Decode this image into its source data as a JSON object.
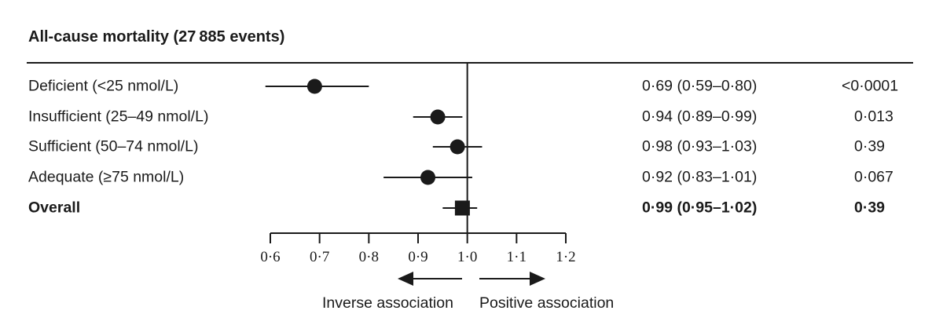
{
  "chart_data": {
    "type": "forest",
    "title": "All-cause mortality (27 885 events)",
    "xlim": [
      0.6,
      1.2
    ],
    "reference_line": 1.0,
    "ticks": [
      0.6,
      0.7,
      0.8,
      0.9,
      1.0,
      1.1,
      1.2
    ],
    "tick_labels": [
      "0·6",
      "0·7",
      "0·8",
      "0·9",
      "1·0",
      "1·1",
      "1·2"
    ],
    "rows": [
      {
        "label": "Deficient (<25 nmol/L)",
        "estimate": 0.69,
        "lower": 0.59,
        "upper": 0.8,
        "marker": "circle",
        "bold": false,
        "text": "0·69 (0·59–0·80)",
        "p": "<0·0001"
      },
      {
        "label": "Insufficient (25–49 nmol/L)",
        "estimate": 0.94,
        "lower": 0.89,
        "upper": 0.99,
        "marker": "circle",
        "bold": false,
        "text": "0·94 (0·89–0·99)",
        "p": "0·013"
      },
      {
        "label": "Sufficient (50–74 nmol/L)",
        "estimate": 0.98,
        "lower": 0.93,
        "upper": 1.03,
        "marker": "circle",
        "bold": false,
        "text": "0·98 (0·93–1·03)",
        "p": "0·39"
      },
      {
        "label": "Adequate (≥75 nmol/L)",
        "estimate": 0.92,
        "lower": 0.83,
        "upper": 1.01,
        "marker": "circle",
        "bold": false,
        "text": "0·92 (0·83–1·01)",
        "p": "0·067"
      },
      {
        "label": "Overall",
        "estimate": 0.99,
        "lower": 0.95,
        "upper": 1.02,
        "marker": "square",
        "bold": true,
        "text": "0·99 (0·95–1·02)",
        "p": "0·39"
      }
    ],
    "direction_labels": {
      "left": "Inverse association",
      "right": "Positive association"
    }
  }
}
